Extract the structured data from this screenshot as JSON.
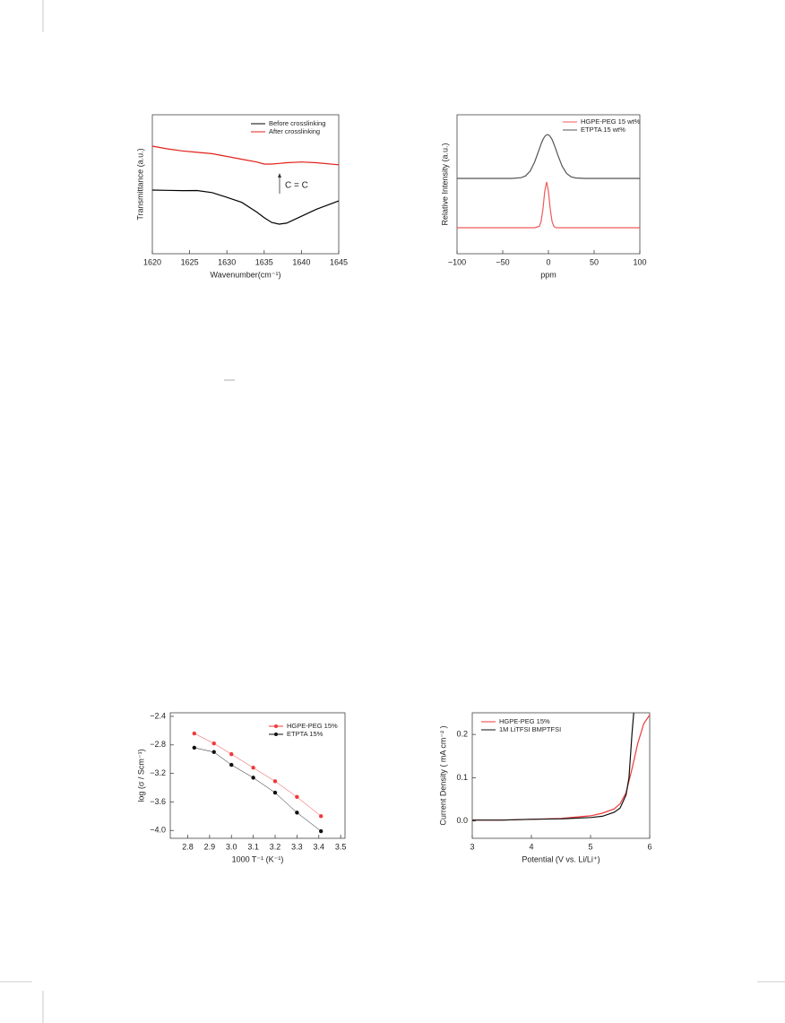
{
  "chart_data": [
    {
      "type": "line",
      "xlabel": "Wavenumber(cm⁻¹)",
      "ylabel": "Transmittance (a.u.)",
      "annotation": "C = C",
      "x": [
        1620,
        1622,
        1624,
        1626,
        1628,
        1630,
        1632,
        1634,
        1635,
        1636,
        1637,
        1638,
        1640,
        1642,
        1645
      ],
      "xlim": [
        1620,
        1645
      ],
      "xticks": [
        1620,
        1625,
        1630,
        1635,
        1640,
        1645
      ],
      "ylim": [
        0,
        100
      ],
      "series": [
        {
          "name": "Before crosslinking",
          "color": "#000000",
          "values": [
            45.8,
            45.6,
            45.4,
            45.5,
            44,
            40.6,
            37,
            30,
            26,
            22.5,
            21.3,
            22,
            27,
            32,
            38
          ]
        },
        {
          "name": "After crosslinking",
          "color": "#e0201b",
          "values": [
            77.4,
            75.5,
            74,
            73,
            72,
            70,
            68,
            66,
            64.5,
            64.5,
            65,
            65.5,
            66,
            65.5,
            64
          ]
        }
      ]
    },
    {
      "type": "line",
      "xlabel": "ppm",
      "ylabel": "Relative Intensity (a.u.)",
      "x": [
        -100,
        -80,
        -60,
        -40,
        -30,
        -25,
        -20,
        -15,
        -10,
        -8,
        -6,
        -4,
        -2,
        0,
        2,
        4,
        6,
        8,
        10,
        15,
        20,
        25,
        30,
        40,
        60,
        80,
        100
      ],
      "xlim": [
        -100,
        100
      ],
      "xticks": [
        {
          "value": -100,
          "label": "−100"
        },
        {
          "value": -50,
          "label": "−50"
        },
        0,
        50,
        100
      ],
      "ylim": [
        0,
        100
      ],
      "series": [
        {
          "name": "HGPE-PEG 15 wt%",
          "color": "#f0595a",
          "values": [
            18.7,
            18.7,
            18.7,
            18.7,
            18.7,
            18.7,
            18.7,
            18.7,
            19.7,
            23.1,
            32.2,
            45,
            51.6,
            45,
            32.2,
            23.1,
            19.7,
            18.8,
            18.7,
            18.7,
            18.7,
            18.7,
            18.7,
            18.7,
            18.7,
            18.7,
            18.7
          ]
        },
        {
          "name": "ETPTA 15 wt%",
          "color": "#555555",
          "values": [
            54.2,
            54.2,
            54.2,
            54.2,
            54.7,
            56,
            59.4,
            66.1,
            75.3,
            79,
            82.1,
            84.4,
            85.6,
            85.6,
            84.4,
            82.1,
            79,
            75.3,
            71.5,
            63,
            57.7,
            55.3,
            54.5,
            54.2,
            54.2,
            54.2,
            54.2
          ]
        }
      ]
    },
    {
      "type": "line",
      "marker": "circle",
      "xlabel": "1000 T⁻¹ (K⁻¹)",
      "ylabel": "log (σ / Scm⁻¹)",
      "x": [
        2.83,
        2.92,
        3.0,
        3.1,
        3.2,
        3.3,
        3.41
      ],
      "xlim": [
        2.72,
        3.52
      ],
      "xticks": [
        2.8,
        2.9,
        {
          "value": 3,
          "label": "3.0"
        },
        3.1,
        3.2,
        3.3,
        3.4,
        3.5
      ],
      "ylim": [
        -4.11,
        -2.35
      ],
      "yticks": [
        {
          "value": -2.4,
          "label": "−2.4"
        },
        {
          "value": -2.8,
          "label": "−2.8"
        },
        {
          "value": -3.2,
          "label": "−3.2"
        },
        {
          "value": -3.6,
          "label": "−3.6"
        },
        {
          "value": -4.0,
          "label": "−4.0"
        }
      ],
      "series": [
        {
          "name": "HGPE-PEG 15%",
          "color": "#f0393a",
          "values": [
            -2.64,
            -2.78,
            -2.93,
            -3.12,
            -3.31,
            -3.53,
            -3.8
          ]
        },
        {
          "name": "ETPTA 15%",
          "color": "#111111",
          "values": [
            -2.84,
            -2.9,
            -3.08,
            -3.26,
            -3.47,
            -3.75,
            -4.01
          ]
        }
      ]
    },
    {
      "type": "line",
      "xlabel": "Potential (V vs. Li/Li⁺)",
      "ylabel": "Current Density ( mA cm⁻² )",
      "xlim": [
        3,
        6
      ],
      "xticks": [
        3,
        4,
        5,
        6
      ],
      "ylim": [
        -0.04,
        0.25
      ],
      "yticks": [
        {
          "value": 0,
          "label": "0.0"
        },
        0.1,
        0.2
      ],
      "series": [
        {
          "name": "HGPE-PEG 15%",
          "color": "#f0393a",
          "x": [
            3,
            3.5,
            4,
            4.5,
            5,
            5.2,
            5.4,
            5.5,
            5.6,
            5.7,
            5.8,
            5.9,
            6.0
          ],
          "values": [
            0.002,
            0.002,
            0.004,
            0.006,
            0.012,
            0.018,
            0.028,
            0.04,
            0.065,
            0.12,
            0.18,
            0.225,
            0.245
          ]
        },
        {
          "name": "1M LiTFSI BMPTFSI",
          "color": "#111111",
          "x": [
            3,
            3.5,
            4,
            4.5,
            5,
            5.2,
            5.4,
            5.5,
            5.6,
            5.65,
            5.7,
            5.73
          ],
          "values": [
            0.002,
            0.002,
            0.004,
            0.005,
            0.008,
            0.011,
            0.02,
            0.03,
            0.06,
            0.1,
            0.2,
            0.25
          ]
        }
      ]
    }
  ]
}
